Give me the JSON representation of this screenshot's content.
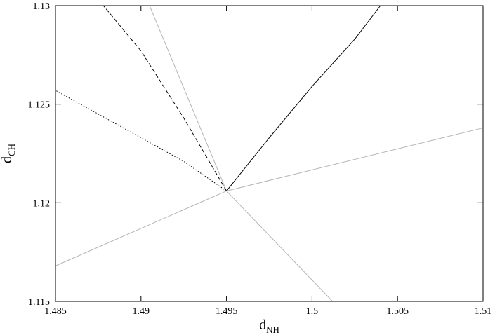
{
  "chart_data": {
    "type": "line",
    "title": "",
    "xlabel": "d",
    "xlabel_sub": "NH",
    "ylabel": "d",
    "ylabel_sub": "CH",
    "xlim": [
      1.485,
      1.51
    ],
    "ylim": [
      1.115,
      1.13
    ],
    "xticks": [
      1.485,
      1.49,
      1.495,
      1.5,
      1.505,
      1.51
    ],
    "xtick_labels": [
      "1.485",
      "1.49",
      "1.495",
      "1.5",
      "1.505",
      "1.51"
    ],
    "yticks": [
      1.115,
      1.12,
      1.125,
      1.13
    ],
    "ytick_labels": [
      "1.115",
      "1.12",
      "1.125",
      "1.13"
    ],
    "grid": false,
    "legend": "none",
    "contour_color": "#b4b4b4",
    "saddle_point": [
      1.495,
      1.1206
    ],
    "contour_levels_A": [
      0.0015,
      0.003,
      0.0045,
      0.006,
      0.0075,
      0.009,
      0.0105,
      0.012,
      0.0135,
      0.015,
      0.0165
    ],
    "contour_levels_B": [
      0.0015,
      0.003,
      0.0045,
      0.006,
      0.0075,
      0.009,
      0.0105,
      0.012,
      0.0135
    ],
    "separatrix_ends": [
      [
        1.485,
        1.1168
      ],
      [
        1.51,
        1.1238
      ],
      [
        1.4905,
        1.13
      ],
      [
        1.5012,
        1.115
      ]
    ],
    "series": [
      {
        "style": "solid",
        "color": "#000000",
        "points": [
          [
            1.495,
            1.1206
          ],
          [
            1.4975,
            1.1233
          ],
          [
            1.5,
            1.1259
          ],
          [
            1.5025,
            1.1283
          ],
          [
            1.504,
            1.13
          ]
        ]
      },
      {
        "style": "dashed",
        "color": "#000000",
        "points": [
          [
            1.495,
            1.1206
          ],
          [
            1.4925,
            1.1243
          ],
          [
            1.49,
            1.1277
          ],
          [
            1.4878,
            1.13
          ]
        ]
      },
      {
        "style": "dotted",
        "color": "#000000",
        "points": [
          [
            1.495,
            1.1206
          ],
          [
            1.4925,
            1.1221
          ],
          [
            1.49,
            1.1233
          ],
          [
            1.4875,
            1.1245
          ],
          [
            1.485,
            1.1257
          ]
        ]
      }
    ]
  }
}
